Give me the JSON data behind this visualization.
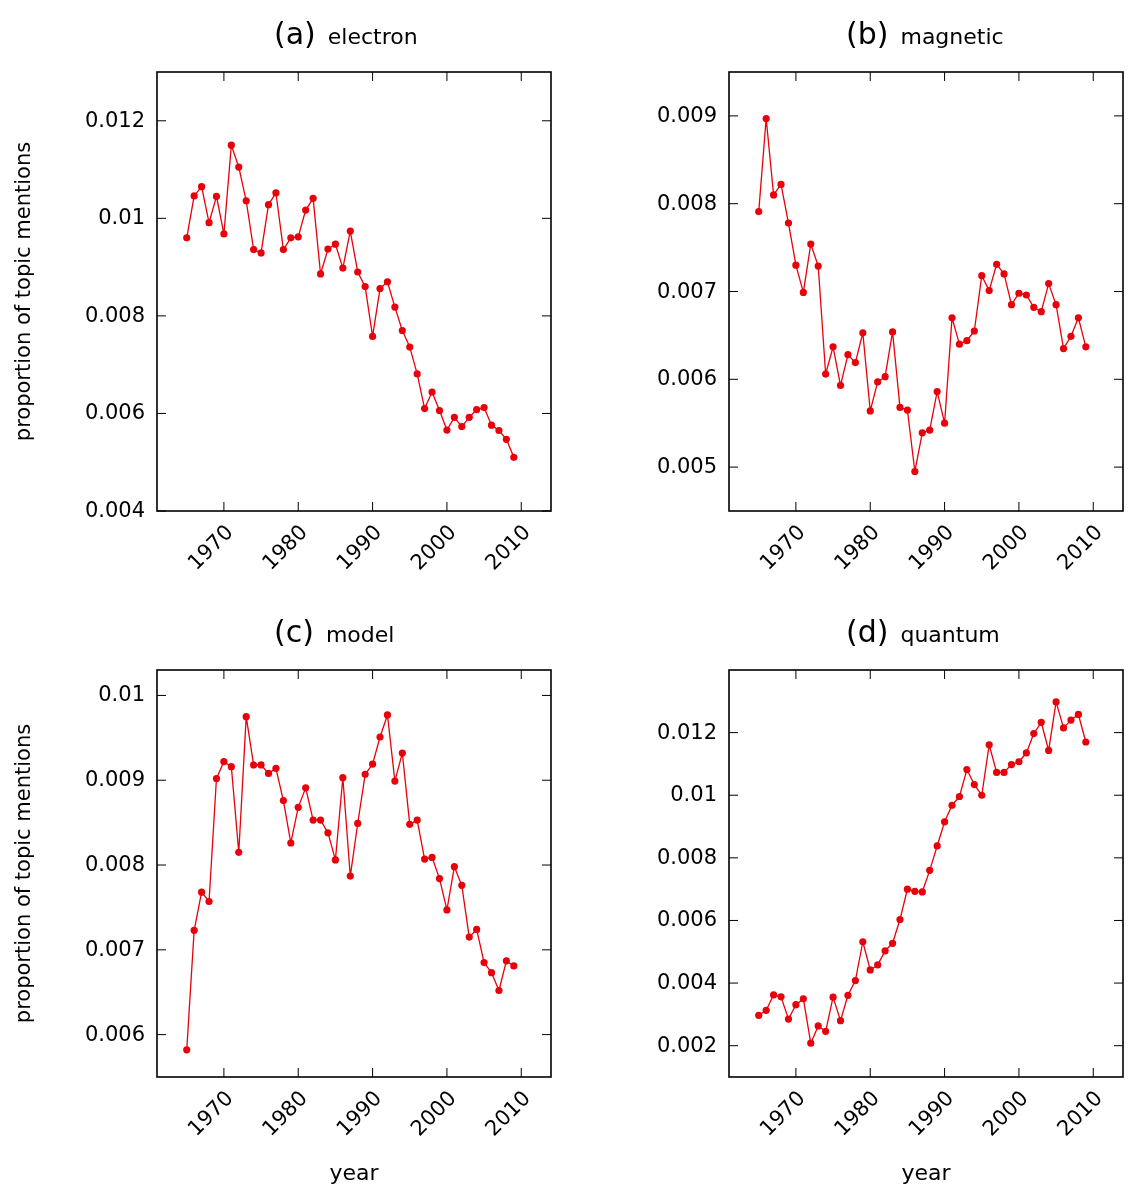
{
  "chart_data": [
    {
      "type": "line",
      "title": "(a)",
      "subtitle": "electron",
      "ylabel": "proportion of topic mentions",
      "marker": "circle",
      "line_style": "solid",
      "xlim": [
        1961,
        2014
      ],
      "xticks": [
        1970,
        1980,
        1990,
        2000,
        2010
      ],
      "ylim": [
        0.004,
        0.013
      ],
      "yticks": [
        0.004,
        0.006,
        0.008,
        0.01,
        0.012
      ],
      "x": [
        1965,
        1966,
        1967,
        1968,
        1969,
        1970,
        1971,
        1972,
        1973,
        1974,
        1975,
        1976,
        1977,
        1978,
        1979,
        1980,
        1981,
        1982,
        1983,
        1984,
        1985,
        1986,
        1987,
        1988,
        1989,
        1990,
        1991,
        1992,
        1993,
        1994,
        1995,
        1996,
        1997,
        1998,
        1999,
        2000,
        2001,
        2002,
        2003,
        2004,
        2005,
        2006,
        2007,
        2008,
        2009
      ],
      "series": [
        {
          "color": "#e8000b",
          "values": [
            0.0096,
            0.01046,
            0.01065,
            0.00991,
            0.01045,
            0.00968,
            0.0115,
            0.01105,
            0.01036,
            0.00936,
            0.00929,
            0.01028,
            0.01052,
            0.00936,
            0.0096,
            0.00962,
            0.01017,
            0.01041,
            0.00886,
            0.00937,
            0.00947,
            0.00898,
            0.00974,
            0.0089,
            0.0086,
            0.00758,
            0.00856,
            0.0087,
            0.00818,
            0.0077,
            0.00736,
            0.00681,
            0.0061,
            0.00644,
            0.00606,
            0.00566,
            0.00592,
            0.00573,
            0.00592,
            0.00608,
            0.00612,
            0.00576,
            0.00565,
            0.00547,
            0.0051
          ]
        }
      ]
    },
    {
      "type": "line",
      "title": "(b)",
      "subtitle": "magnetic",
      "marker": "circle",
      "line_style": "solid",
      "xlim": [
        1961,
        2014
      ],
      "xticks": [
        1970,
        1980,
        1990,
        2000,
        2010
      ],
      "ylim": [
        0.0045,
        0.0095
      ],
      "yticks": [
        0.005,
        0.006,
        0.007,
        0.008,
        0.009
      ],
      "x": [
        1965,
        1966,
        1967,
        1968,
        1969,
        1970,
        1971,
        1972,
        1973,
        1974,
        1975,
        1976,
        1977,
        1978,
        1979,
        1980,
        1981,
        1982,
        1983,
        1984,
        1985,
        1986,
        1987,
        1988,
        1989,
        1990,
        1991,
        1992,
        1993,
        1994,
        1995,
        1996,
        1997,
        1998,
        1999,
        2000,
        2001,
        2002,
        2003,
        2004,
        2005,
        2006,
        2007,
        2008,
        2009
      ],
      "series": [
        {
          "color": "#e8000b",
          "values": [
            0.00791,
            0.00897,
            0.0081,
            0.00822,
            0.00778,
            0.0073,
            0.00699,
            0.00754,
            0.00729,
            0.00606,
            0.00637,
            0.00593,
            0.00628,
            0.00619,
            0.00653,
            0.00564,
            0.00597,
            0.00603,
            0.00654,
            0.00568,
            0.00565,
            0.00495,
            0.00539,
            0.00542,
            0.00586,
            0.0055,
            0.0067,
            0.0064,
            0.00644,
            0.00655,
            0.00718,
            0.00701,
            0.00731,
            0.0072,
            0.00685,
            0.00698,
            0.00696,
            0.00682,
            0.00677,
            0.00709,
            0.00685,
            0.00635,
            0.00649,
            0.0067,
            0.00637
          ]
        }
      ]
    },
    {
      "type": "line",
      "title": "(c)",
      "subtitle": "model",
      "xlabel": "year",
      "ylabel": "proportion of topic mentions",
      "marker": "circle",
      "line_style": "solid",
      "xlim": [
        1961,
        2014
      ],
      "xticks": [
        1970,
        1980,
        1990,
        2000,
        2010
      ],
      "ylim": [
        0.0055,
        0.0103
      ],
      "yticks": [
        0.006,
        0.007,
        0.008,
        0.009,
        0.01
      ],
      "x": [
        1965,
        1966,
        1967,
        1968,
        1969,
        1970,
        1971,
        1972,
        1973,
        1974,
        1975,
        1976,
        1977,
        1978,
        1979,
        1980,
        1981,
        1982,
        1983,
        1984,
        1985,
        1986,
        1987,
        1988,
        1989,
        1990,
        1991,
        1992,
        1993,
        1994,
        1995,
        1996,
        1997,
        1998,
        1999,
        2000,
        2001,
        2002,
        2003,
        2004,
        2005,
        2006,
        2007,
        2008,
        2009
      ],
      "series": [
        {
          "color": "#e8000b",
          "values": [
            0.00582,
            0.00723,
            0.00768,
            0.00757,
            0.00902,
            0.00922,
            0.00916,
            0.00815,
            0.00975,
            0.00918,
            0.00918,
            0.00908,
            0.00914,
            0.00876,
            0.00826,
            0.00868,
            0.00891,
            0.00853,
            0.00853,
            0.00838,
            0.00806,
            0.00903,
            0.00787,
            0.00849,
            0.00907,
            0.00919,
            0.00951,
            0.00977,
            0.00899,
            0.00932,
            0.00848,
            0.00853,
            0.00807,
            0.00809,
            0.00784,
            0.00747,
            0.00798,
            0.00776,
            0.00715,
            0.00724,
            0.00685,
            0.00673,
            0.00652,
            0.00687,
            0.00681
          ]
        }
      ]
    },
    {
      "type": "line",
      "title": "(d)",
      "subtitle": "quantum",
      "xlabel": "year",
      "marker": "circle",
      "line_style": "solid",
      "xlim": [
        1961,
        2014
      ],
      "xticks": [
        1970,
        1980,
        1990,
        2000,
        2010
      ],
      "ylim": [
        0.001,
        0.014
      ],
      "yticks": [
        0.002,
        0.004,
        0.006,
        0.008,
        0.01,
        0.012
      ],
      "x": [
        1965,
        1966,
        1967,
        1968,
        1969,
        1970,
        1971,
        1972,
        1973,
        1974,
        1975,
        1976,
        1977,
        1978,
        1979,
        1980,
        1981,
        1982,
        1983,
        1984,
        1985,
        1986,
        1987,
        1988,
        1989,
        1990,
        1991,
        1992,
        1993,
        1994,
        1995,
        1996,
        1997,
        1998,
        1999,
        2000,
        2001,
        2002,
        2003,
        2004,
        2005,
        2006,
        2007,
        2008,
        2009
      ],
      "series": [
        {
          "color": "#e8000b",
          "values": [
            0.00297,
            0.00313,
            0.00362,
            0.00356,
            0.00285,
            0.00331,
            0.0035,
            0.00208,
            0.00263,
            0.00246,
            0.00355,
            0.0028,
            0.00361,
            0.00408,
            0.00532,
            0.00442,
            0.00458,
            0.00503,
            0.00527,
            0.00603,
            0.007,
            0.00693,
            0.00691,
            0.0076,
            0.00838,
            0.00915,
            0.00968,
            0.00996,
            0.01082,
            0.01034,
            0.01,
            0.01161,
            0.01073,
            0.01073,
            0.01098,
            0.01107,
            0.01135,
            0.01197,
            0.01233,
            0.01143,
            0.01298,
            0.01215,
            0.0124,
            0.01258,
            0.0117
          ]
        }
      ]
    }
  ]
}
